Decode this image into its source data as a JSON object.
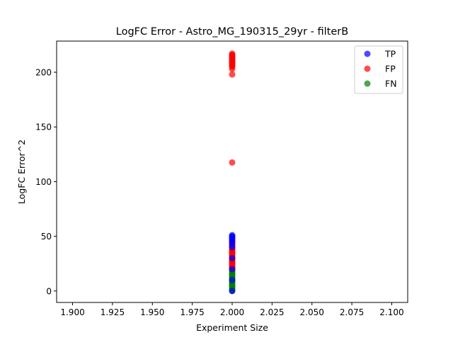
{
  "chart_data": {
    "type": "scatter",
    "title": "LogFC Error - Astro_MG_190315_29yr - filterB",
    "xlabel": "Experiment Size",
    "ylabel": "LogFC Error^2",
    "xlim": [
      1.89,
      2.11
    ],
    "ylim": [
      -10.5,
      228.5
    ],
    "xticks": [
      1.9,
      1.925,
      1.95,
      1.975,
      2.0,
      2.025,
      2.05,
      2.075,
      2.1
    ],
    "xtick_labels": [
      "1.900",
      "1.925",
      "1.950",
      "1.975",
      "2.000",
      "2.025",
      "2.050",
      "2.075",
      "2.100"
    ],
    "yticks": [
      0,
      50,
      100,
      150,
      200
    ],
    "ytick_labels": [
      "0",
      "50",
      "100",
      "150",
      "200"
    ],
    "legend_position": "top-right",
    "grid": false,
    "series": [
      {
        "name": "TP",
        "color": "#0000ff",
        "x": [
          2,
          2,
          2,
          2,
          2,
          2,
          2,
          2,
          2,
          2,
          2,
          2
        ],
        "y": [
          51,
          50,
          49,
          48,
          47,
          45,
          43,
          40,
          30,
          20,
          10,
          0
        ]
      },
      {
        "name": "FP",
        "color": "#ff0000",
        "x": [
          2,
          2,
          2,
          2,
          2,
          2,
          2,
          2,
          2,
          2,
          2,
          2,
          2,
          2,
          2,
          2,
          2,
          2,
          2,
          2,
          2,
          2,
          2,
          2,
          2,
          2,
          2,
          2,
          2,
          2,
          2,
          2,
          2,
          2,
          2,
          2,
          2,
          2,
          2,
          2,
          2,
          2
        ],
        "y": [
          217,
          216,
          215,
          214,
          213,
          212,
          211,
          210,
          209,
          208,
          207,
          206,
          205,
          203,
          198,
          117.5,
          46,
          45,
          44,
          43,
          42,
          41,
          40,
          39,
          38,
          37,
          36,
          35,
          34,
          33,
          32,
          31,
          30,
          29,
          28,
          27,
          26,
          25,
          24,
          23,
          22,
          21
        ]
      },
      {
        "name": "FN",
        "color": "#008000",
        "x": [
          2,
          2,
          2,
          2,
          2,
          2,
          2,
          2,
          2,
          2,
          2,
          2,
          2,
          2,
          2,
          2,
          2,
          2,
          2,
          2,
          2,
          2,
          2
        ],
        "y": [
          22,
          21,
          20,
          19,
          18,
          17,
          16,
          15,
          14,
          13,
          12,
          11,
          10,
          9,
          8,
          7,
          6,
          5,
          4,
          3,
          2,
          1,
          0
        ]
      }
    ]
  }
}
